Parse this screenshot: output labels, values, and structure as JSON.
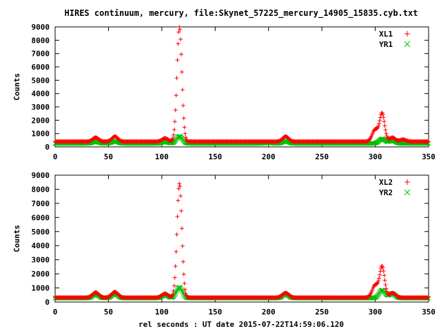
{
  "title": "HIRES continuum, mercury, file:Skynet_57225_mercury_14905_15835.cyb.txt",
  "xlabel": "rel seconds : UT date 2015-07-22T14:59:06.120",
  "colors": {
    "red": "#ff0000",
    "green": "#00c000"
  },
  "chart_data": [
    {
      "type": "scatter",
      "ylabel": "Counts",
      "xlim": [
        0,
        350
      ],
      "ylim": [
        0,
        9000
      ],
      "xticks": [
        0,
        50,
        100,
        150,
        200,
        250,
        300,
        350
      ],
      "yticks": [
        0,
        1000,
        2000,
        3000,
        4000,
        5000,
        6000,
        7000,
        8000,
        9000
      ],
      "legend_position": "top-right",
      "series": [
        {
          "name": "XL1",
          "marker": "+",
          "color": "#ff0000",
          "baseline": 400,
          "peaks": [
            {
              "x": 38,
              "height": 700
            },
            {
              "x": 56,
              "height": 780
            },
            {
              "x": 103,
              "height": 650
            },
            {
              "x": 116.5,
              "height": 9000
            },
            {
              "x": 216,
              "height": 780
            },
            {
              "x": 300,
              "height": 1300
            },
            {
              "x": 306.5,
              "height": 2500
            },
            {
              "x": 316,
              "height": 700
            },
            {
              "x": 326,
              "height": 550
            }
          ]
        },
        {
          "name": "YR1",
          "marker": "x",
          "color": "#00c000",
          "baseline": 260,
          "peaks": [
            {
              "x": 38,
              "height": 400
            },
            {
              "x": 56,
              "height": 430
            },
            {
              "x": 103,
              "height": 380
            },
            {
              "x": 116.5,
              "height": 800
            },
            {
              "x": 200,
              "height": 320
            },
            {
              "x": 216,
              "height": 430
            },
            {
              "x": 306.5,
              "height": 600
            },
            {
              "x": 316,
              "height": 480
            }
          ]
        }
      ]
    },
    {
      "type": "scatter",
      "ylabel": "Counts",
      "xlim": [
        0,
        350
      ],
      "ylim": [
        0,
        9000
      ],
      "xticks": [
        0,
        50,
        100,
        150,
        200,
        250,
        300,
        350
      ],
      "yticks": [
        0,
        1000,
        2000,
        3000,
        4000,
        5000,
        6000,
        7000,
        8000,
        9000
      ],
      "legend_position": "top-right",
      "series": [
        {
          "name": "XL2",
          "marker": "+",
          "color": "#ff0000",
          "baseline": 320,
          "peaks": [
            {
              "x": 38,
              "height": 680
            },
            {
              "x": 56,
              "height": 720
            },
            {
              "x": 103,
              "height": 600
            },
            {
              "x": 116.5,
              "height": 8400
            },
            {
              "x": 216,
              "height": 650
            },
            {
              "x": 300,
              "height": 1200
            },
            {
              "x": 306.5,
              "height": 2500
            },
            {
              "x": 316,
              "height": 650
            }
          ]
        },
        {
          "name": "YR2",
          "marker": "x",
          "color": "#00c000",
          "baseline": 280,
          "peaks": [
            {
              "x": 38,
              "height": 550
            },
            {
              "x": 56,
              "height": 580
            },
            {
              "x": 103,
              "height": 500
            },
            {
              "x": 116.5,
              "height": 1050
            },
            {
              "x": 216,
              "height": 550
            },
            {
              "x": 306.5,
              "height": 850
            },
            {
              "x": 316,
              "height": 600
            }
          ]
        }
      ]
    }
  ]
}
